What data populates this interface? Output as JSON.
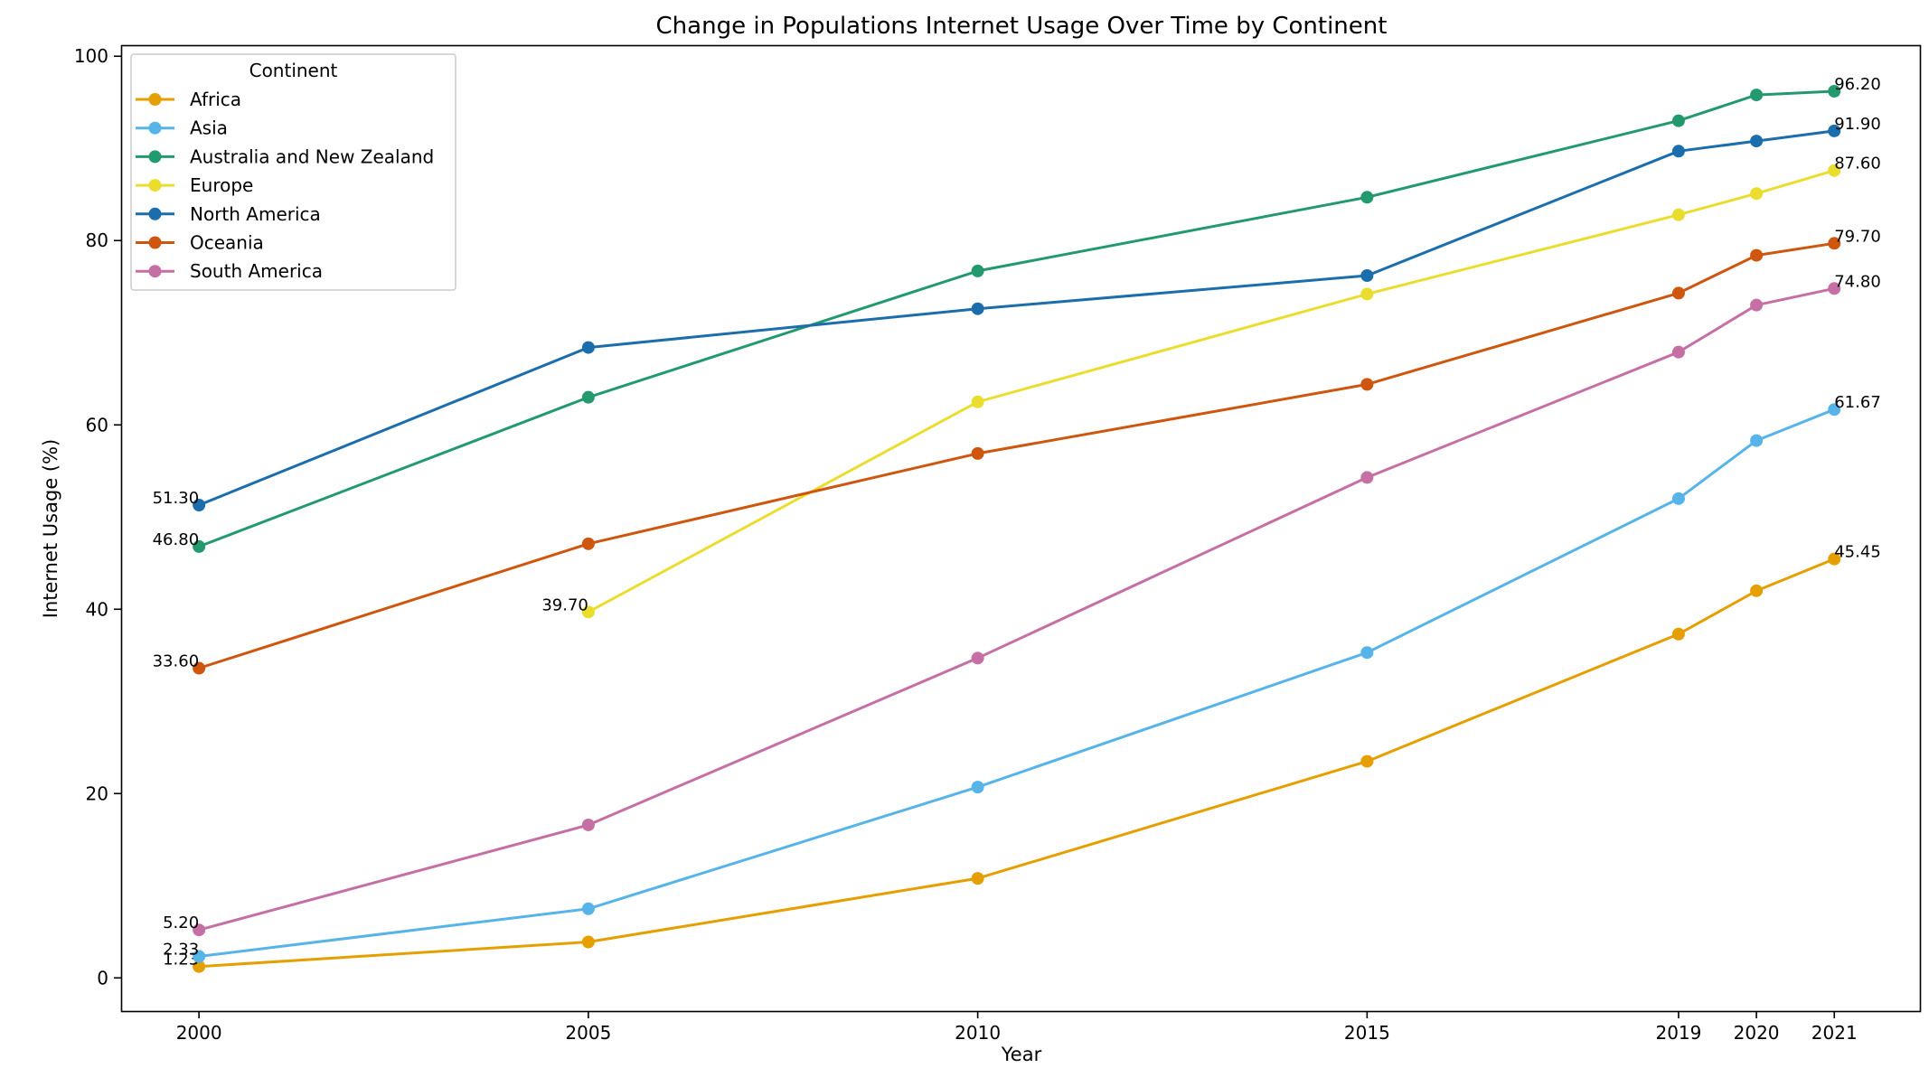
{
  "chart_data": {
    "type": "line",
    "title": "Change in Populations Internet Usage Over Time by Continent",
    "xlabel": "Year",
    "ylabel": "Internet Usage (%)",
    "x_ticks": [
      2000,
      2005,
      2010,
      2015,
      2019,
      2020,
      2021
    ],
    "y_ticks": [
      0,
      20,
      40,
      60,
      80,
      100
    ],
    "xlim": [
      1999,
      2022.1
    ],
    "ylim": [
      -3.6,
      101.2
    ],
    "grid": false,
    "legend": {
      "title": "Continent",
      "placement": "top-left"
    },
    "series": [
      {
        "name": "Africa",
        "color": "#E69F00",
        "points": [
          [
            2000,
            1.23
          ],
          [
            2005,
            3.9
          ],
          [
            2010,
            10.8
          ],
          [
            2015,
            23.5
          ],
          [
            2019,
            37.3
          ],
          [
            2020,
            42.0
          ],
          [
            2021,
            45.45
          ]
        ],
        "start_label": "1.23",
        "end_label": "45.45"
      },
      {
        "name": "Asia",
        "color": "#56B4E9",
        "points": [
          [
            2000,
            2.33
          ],
          [
            2005,
            7.5
          ],
          [
            2010,
            20.7
          ],
          [
            2015,
            35.3
          ],
          [
            2019,
            52.0
          ],
          [
            2020,
            58.3
          ],
          [
            2021,
            61.67
          ]
        ],
        "start_label": "2.33",
        "end_label": "61.67"
      },
      {
        "name": "Australia and New Zealand",
        "color": "#229A6E",
        "points": [
          [
            2000,
            46.8
          ],
          [
            2005,
            63.0
          ],
          [
            2010,
            76.7
          ],
          [
            2015,
            84.7
          ],
          [
            2019,
            93.0
          ],
          [
            2020,
            95.8
          ],
          [
            2021,
            96.2
          ]
        ],
        "start_label": "46.80",
        "end_label": "96.20"
      },
      {
        "name": "Europe",
        "color": "#EBDD2E",
        "points": [
          [
            2005,
            39.7
          ],
          [
            2010,
            62.5
          ],
          [
            2015,
            74.2
          ],
          [
            2019,
            82.8
          ],
          [
            2020,
            85.1
          ],
          [
            2021,
            87.6
          ]
        ],
        "start_label": "39.70",
        "end_label": "87.60"
      },
      {
        "name": "North America",
        "color": "#1C6DAB",
        "points": [
          [
            2000,
            51.3
          ],
          [
            2005,
            68.4
          ],
          [
            2010,
            72.6
          ],
          [
            2015,
            76.2
          ],
          [
            2019,
            89.7
          ],
          [
            2020,
            90.8
          ],
          [
            2021,
            91.9
          ]
        ],
        "start_label": "51.30",
        "end_label": "91.90"
      },
      {
        "name": "Oceania",
        "color": "#CF560E",
        "points": [
          [
            2000,
            33.6
          ],
          [
            2005,
            47.1
          ],
          [
            2010,
            56.9
          ],
          [
            2015,
            64.4
          ],
          [
            2019,
            74.3
          ],
          [
            2020,
            78.4
          ],
          [
            2021,
            79.7
          ]
        ],
        "start_label": "33.60",
        "end_label": "79.70"
      },
      {
        "name": "South America",
        "color": "#C56FA5",
        "points": [
          [
            2000,
            5.2
          ],
          [
            2005,
            16.6
          ],
          [
            2010,
            34.7
          ],
          [
            2015,
            54.3
          ],
          [
            2019,
            67.9
          ],
          [
            2020,
            73.0
          ],
          [
            2021,
            74.8
          ]
        ],
        "start_label": "5.20",
        "end_label": "74.80"
      }
    ]
  }
}
